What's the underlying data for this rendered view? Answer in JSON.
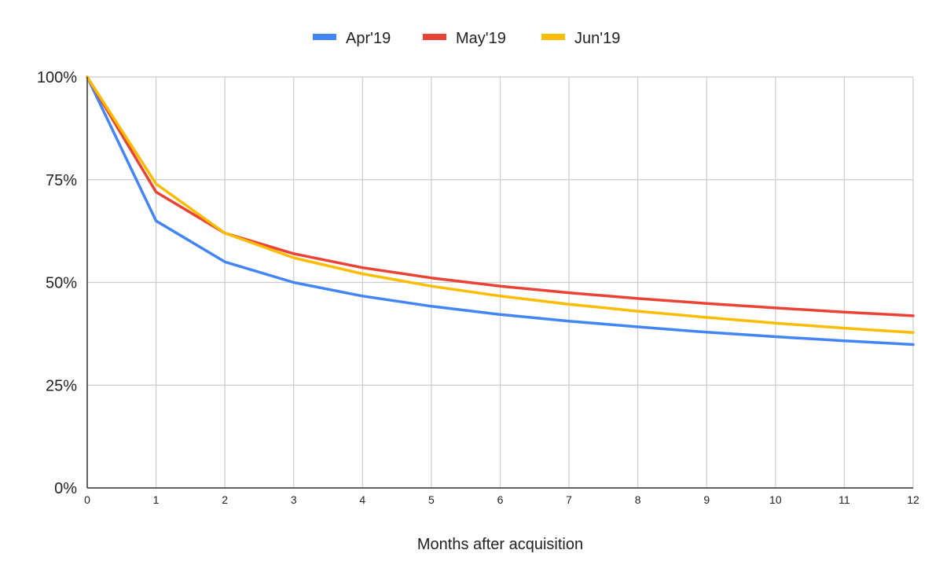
{
  "chart_data": {
    "type": "line",
    "title": "",
    "xlabel": "Months after acquisition",
    "ylabel": "",
    "x": [
      0,
      1,
      2,
      3,
      4,
      5,
      6,
      7,
      8,
      9,
      10,
      11,
      12
    ],
    "xlim": [
      0,
      12
    ],
    "ylim": [
      0,
      100
    ],
    "y_ticks": [
      0,
      25,
      50,
      75,
      100
    ],
    "y_tick_labels": [
      "0%",
      "25%",
      "50%",
      "75%",
      "100%"
    ],
    "x_tick_labels": [
      "0",
      "1",
      "2",
      "3",
      "4",
      "5",
      "6",
      "7",
      "8",
      "9",
      "10",
      "11",
      "12"
    ],
    "grid": true,
    "legend_position": "top-center",
    "series": [
      {
        "name": "Apr'19",
        "color": "#4285f4",
        "values": [
          100,
          65,
          55,
          50,
          46.7,
          44.2,
          42.2,
          40.6,
          39.2,
          37.9,
          36.8,
          35.8,
          34.9
        ]
      },
      {
        "name": "May'19",
        "color": "#ea4335",
        "values": [
          100,
          72,
          62,
          57,
          53.6,
          51.1,
          49.1,
          47.5,
          46.1,
          44.9,
          43.8,
          42.8,
          41.9
        ]
      },
      {
        "name": "Jun'19",
        "color": "#fbbc04",
        "values": [
          100,
          74,
          62,
          56,
          52.1,
          49.1,
          46.7,
          44.7,
          43.0,
          41.5,
          40.1,
          38.9,
          37.8
        ]
      }
    ]
  }
}
